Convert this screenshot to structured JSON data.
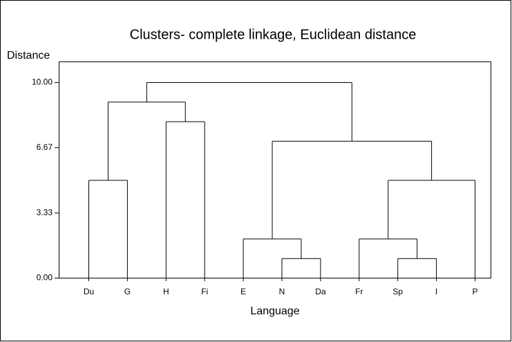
{
  "chart_data": {
    "type": "dendrogram",
    "title": "Clusters- complete linkage, Euclidean distance",
    "y_label": "Distance",
    "x_label": "Language",
    "ylim": [
      0,
      10
    ],
    "yticks": [
      {
        "value": 0,
        "label": "0.00"
      },
      {
        "value": 3.33,
        "label": "3.33"
      },
      {
        "value": 6.67,
        "label": "6.67"
      },
      {
        "value": 10,
        "label": "10.00"
      }
    ],
    "tree": {
      "height": 10,
      "children": [
        {
          "height": 9,
          "children": [
            {
              "height": 5,
              "children": [
                "Du",
                "G"
              ]
            },
            {
              "height": 8,
              "children": [
                "H",
                "Fi"
              ]
            }
          ]
        },
        {
          "height": 7,
          "children": [
            {
              "height": 2,
              "children": [
                "E",
                {
                  "height": 1,
                  "children": [
                    "N",
                    "Da"
                  ]
                }
              ]
            },
            {
              "height": 5,
              "children": [
                {
                  "height": 2,
                  "children": [
                    "Fr",
                    {
                      "height": 1,
                      "children": [
                        "Sp",
                        "I"
                      ]
                    }
                  ]
                },
                "P"
              ]
            }
          ]
        }
      ]
    }
  }
}
